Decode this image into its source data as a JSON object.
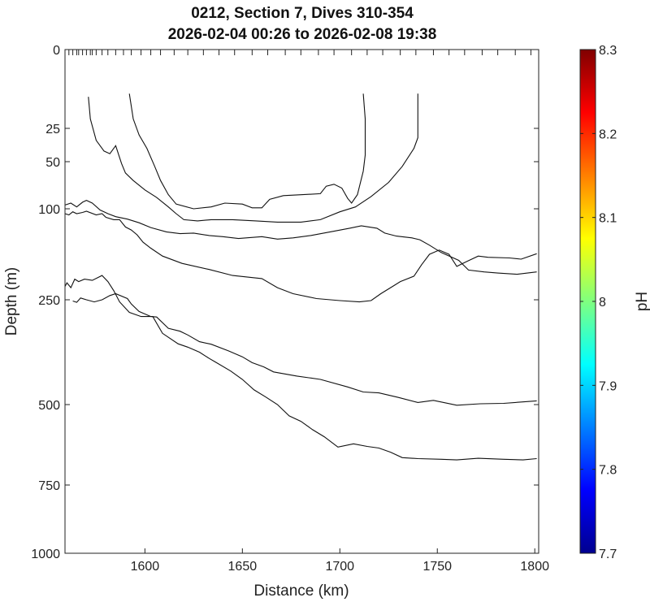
{
  "chart_data": {
    "type": "line",
    "title": "0212, Section 7, Dives 310-354",
    "subtitle": "2026-02-04 00:26 to 2026-02-08 19:38",
    "xlabel": "Distance (km)",
    "ylabel": "Depth (m)",
    "xlim": [
      1559,
      1802
    ],
    "ylim": [
      0,
      1000
    ],
    "y_reversed": true,
    "y_scale": "nonlinear",
    "x_ticks": [
      "1600",
      "1650",
      "1700",
      "1750",
      "1800"
    ],
    "y_ticks": [
      "0",
      "25",
      "50",
      "100",
      "250",
      "500",
      "750",
      "1000"
    ],
    "grid": false,
    "dive_markers": [
      1561,
      1563,
      1565,
      1566,
      1568,
      1570,
      1572,
      1573,
      1575,
      1578,
      1581,
      1585,
      1589,
      1593,
      1598,
      1603,
      1608,
      1615,
      1622,
      1630,
      1638,
      1646,
      1655,
      1663,
      1672,
      1680,
      1689,
      1697,
      1706,
      1714,
      1722,
      1731,
      1739,
      1748,
      1756,
      1764,
      1773,
      1781,
      1790,
      1798
    ],
    "colorbar": {
      "label": "pH",
      "min": 7.7,
      "max": 8.3,
      "ticks": [
        "7.7",
        "7.8",
        "7.9",
        "8",
        "8.1",
        "8.2",
        "8.3"
      ]
    },
    "series": [
      {
        "values": [
          [
            1571,
            15
          ],
          [
            1572,
            22
          ],
          [
            1575,
            34
          ],
          [
            1579,
            42
          ],
          [
            1582,
            44
          ],
          [
            1585,
            38
          ],
          [
            1588,
            52
          ],
          [
            1590,
            62
          ],
          [
            1594,
            70
          ],
          [
            1600,
            80
          ],
          [
            1606,
            88
          ],
          [
            1612,
            98
          ],
          [
            1616,
            108
          ],
          [
            1620,
            118
          ],
          [
            1627,
            120
          ],
          [
            1634,
            118
          ],
          [
            1645,
            118
          ],
          [
            1657,
            120
          ],
          [
            1668,
            122
          ],
          [
            1680,
            122
          ],
          [
            1690,
            118
          ],
          [
            1700,
            105
          ],
          [
            1708,
            98
          ],
          [
            1716,
            87
          ],
          [
            1725,
            72
          ],
          [
            1732,
            55
          ],
          [
            1738,
            40
          ],
          [
            1740,
            32
          ],
          [
            1740,
            14
          ]
        ]
      },
      {
        "values": [
          [
            1592,
            14
          ],
          [
            1594,
            22
          ],
          [
            1597,
            30
          ],
          [
            1601,
            40
          ],
          [
            1605,
            55
          ],
          [
            1608,
            70
          ],
          [
            1612,
            85
          ],
          [
            1616,
            95
          ],
          [
            1625,
            100
          ],
          [
            1634,
            98
          ],
          [
            1641,
            94
          ],
          [
            1650,
            95
          ],
          [
            1655,
            99
          ],
          [
            1660,
            99
          ],
          [
            1664,
            90
          ],
          [
            1671,
            86
          ],
          [
            1681,
            85
          ],
          [
            1690,
            84
          ],
          [
            1693,
            76
          ],
          [
            1697,
            74
          ],
          [
            1701,
            78
          ],
          [
            1704,
            89
          ],
          [
            1706,
            94
          ],
          [
            1709,
            85
          ],
          [
            1712,
            60
          ],
          [
            1713,
            45
          ],
          [
            1713,
            22
          ],
          [
            1712,
            14
          ]
        ]
      },
      {
        "values": [
          [
            1559,
            96
          ],
          [
            1562,
            94
          ],
          [
            1565,
            98
          ],
          [
            1568,
            93
          ],
          [
            1570,
            91
          ],
          [
            1573,
            94
          ],
          [
            1577,
            102
          ],
          [
            1581,
            108
          ],
          [
            1585,
            113
          ],
          [
            1591,
            117
          ],
          [
            1597,
            123
          ],
          [
            1603,
            131
          ],
          [
            1611,
            138
          ],
          [
            1618,
            141
          ],
          [
            1625,
            140
          ],
          [
            1633,
            144
          ],
          [
            1640,
            146
          ],
          [
            1648,
            149
          ],
          [
            1660,
            146
          ],
          [
            1668,
            150
          ],
          [
            1676,
            148
          ],
          [
            1685,
            144
          ],
          [
            1697,
            137
          ],
          [
            1705,
            132
          ],
          [
            1711,
            128
          ],
          [
            1719,
            132
          ],
          [
            1723,
            140
          ],
          [
            1729,
            145
          ],
          [
            1737,
            148
          ],
          [
            1741,
            151
          ],
          [
            1746,
            160
          ],
          [
            1752,
            172
          ],
          [
            1761,
            185
          ],
          [
            1766,
            201
          ],
          [
            1774,
            204
          ],
          [
            1781,
            206
          ],
          [
            1791,
            208
          ],
          [
            1801,
            204
          ]
        ]
      },
      {
        "values": [
          [
            1559,
            108
          ],
          [
            1561,
            110
          ],
          [
            1563,
            105
          ],
          [
            1565,
            108
          ],
          [
            1568,
            106
          ],
          [
            1570,
            104
          ],
          [
            1575,
            110
          ],
          [
            1578,
            108
          ],
          [
            1580,
            114
          ],
          [
            1584,
            118
          ],
          [
            1587,
            118
          ],
          [
            1590,
            130
          ],
          [
            1593,
            135
          ],
          [
            1596,
            143
          ],
          [
            1599,
            155
          ],
          [
            1603,
            165
          ],
          [
            1609,
            178
          ],
          [
            1619,
            190
          ],
          [
            1633,
            200
          ],
          [
            1645,
            210
          ],
          [
            1660,
            215
          ],
          [
            1668,
            230
          ],
          [
            1676,
            240
          ],
          [
            1688,
            248
          ],
          [
            1700,
            252
          ],
          [
            1710,
            255
          ],
          [
            1716,
            252
          ],
          [
            1721,
            240
          ],
          [
            1727,
            228
          ],
          [
            1731,
            220
          ],
          [
            1738,
            211
          ],
          [
            1742,
            192
          ],
          [
            1746,
            175
          ],
          [
            1751,
            168
          ],
          [
            1756,
            175
          ],
          [
            1760,
            195
          ],
          [
            1765,
            187
          ],
          [
            1771,
            178
          ],
          [
            1776,
            180
          ],
          [
            1787,
            181
          ],
          [
            1793,
            183
          ],
          [
            1801,
            174
          ]
        ]
      },
      {
        "values": [
          [
            1563,
            253
          ],
          [
            1565,
            256
          ],
          [
            1567,
            247
          ],
          [
            1570,
            250
          ],
          [
            1574,
            255
          ],
          [
            1578,
            250
          ],
          [
            1582,
            243
          ],
          [
            1585,
            240
          ],
          [
            1591,
            248
          ],
          [
            1593,
            260
          ],
          [
            1597,
            278
          ],
          [
            1603,
            290
          ],
          [
            1606,
            291
          ],
          [
            1612,
            318
          ],
          [
            1618,
            325
          ],
          [
            1622,
            334
          ],
          [
            1628,
            350
          ],
          [
            1634,
            356
          ],
          [
            1643,
            372
          ],
          [
            1650,
            386
          ],
          [
            1655,
            400
          ],
          [
            1661,
            410
          ],
          [
            1666,
            422
          ],
          [
            1678,
            432
          ],
          [
            1690,
            440
          ],
          [
            1704,
            458
          ],
          [
            1712,
            470
          ],
          [
            1720,
            472
          ],
          [
            1730,
            483
          ],
          [
            1740,
            495
          ],
          [
            1748,
            490
          ],
          [
            1760,
            502
          ],
          [
            1772,
            498
          ],
          [
            1784,
            497
          ],
          [
            1801,
            491
          ]
        ]
      },
      {
        "values": [
          [
            1559,
            228
          ],
          [
            1560,
            222
          ],
          [
            1562,
            230
          ],
          [
            1564,
            216
          ],
          [
            1566,
            220
          ],
          [
            1569,
            216
          ],
          [
            1573,
            218
          ],
          [
            1578,
            210
          ],
          [
            1581,
            220
          ],
          [
            1584,
            235
          ],
          [
            1587,
            255
          ],
          [
            1592,
            280
          ],
          [
            1598,
            290
          ],
          [
            1604,
            290
          ],
          [
            1609,
            330
          ],
          [
            1617,
            355
          ],
          [
            1622,
            363
          ],
          [
            1628,
            375
          ],
          [
            1633,
            390
          ],
          [
            1636,
            398
          ],
          [
            1644,
            420
          ],
          [
            1650,
            440
          ],
          [
            1656,
            465
          ],
          [
            1662,
            482
          ],
          [
            1668,
            500
          ],
          [
            1674,
            535
          ],
          [
            1680,
            552
          ],
          [
            1686,
            578
          ],
          [
            1692,
            600
          ],
          [
            1699,
            632
          ],
          [
            1707,
            622
          ],
          [
            1714,
            630
          ],
          [
            1720,
            635
          ],
          [
            1726,
            648
          ],
          [
            1732,
            665
          ],
          [
            1740,
            668
          ],
          [
            1752,
            670
          ],
          [
            1760,
            672
          ],
          [
            1771,
            667
          ],
          [
            1784,
            670
          ],
          [
            1794,
            672
          ],
          [
            1801,
            668
          ]
        ]
      }
    ]
  }
}
